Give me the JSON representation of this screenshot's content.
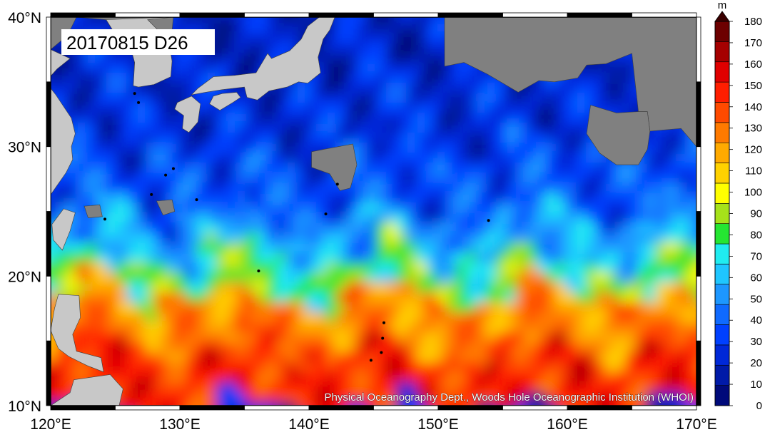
{
  "date_stamp": "20170815 D26",
  "credit": "Physical Oceanography Dept., Woods Hole Oceanographic Institution (WHOI)",
  "colorbar": {
    "unit": "m",
    "labels": [
      "0",
      "10",
      "20",
      "30",
      "40",
      "50",
      "60",
      "70",
      "80",
      "90",
      "100",
      "110",
      "120",
      "130",
      "140",
      "150",
      "160",
      "170",
      "180"
    ],
    "colors": [
      "#000a7a",
      "#001aa8",
      "#0028d8",
      "#0040ff",
      "#0f6aff",
      "#1d97ff",
      "#1fc6ff",
      "#20ecf0",
      "#25e632",
      "#a6e21a",
      "#ffff00",
      "#ffd200",
      "#ffaa00",
      "#ff7a00",
      "#ff4a00",
      "#ff1e00",
      "#e00000",
      "#a50000",
      "#6d0000",
      "#3a0000"
    ]
  },
  "land_color": "#808080",
  "chart_data": {
    "type": "heatmap",
    "title": "",
    "xlabel": "",
    "ylabel": "",
    "x_ticks": [
      "120°E",
      "130°E",
      "140°E",
      "150°E",
      "160°E",
      "170°E"
    ],
    "y_ticks": [
      "10°N",
      "20°N",
      "30°N",
      "40°N"
    ],
    "xlim": [
      120,
      170
    ],
    "ylim": [
      10,
      40
    ],
    "value_range": [
      0,
      180
    ],
    "value_unit": "m",
    "zonal_band_estimates": [
      {
        "lat_range": [
          10,
          15
        ],
        "value_approx": 145
      },
      {
        "lat_range": [
          15,
          19
        ],
        "value_approx": 125
      },
      {
        "lat_range": [
          19,
          22
        ],
        "value_approx": 80
      },
      {
        "lat_range": [
          22,
          25
        ],
        "value_approx": 55
      },
      {
        "lat_range": [
          25,
          30
        ],
        "value_approx": 35
      },
      {
        "lat_range": [
          30,
          36
        ],
        "value_approx": 25
      },
      {
        "lat_range": [
          36,
          40
        ],
        "value_approx": 20
      }
    ]
  }
}
